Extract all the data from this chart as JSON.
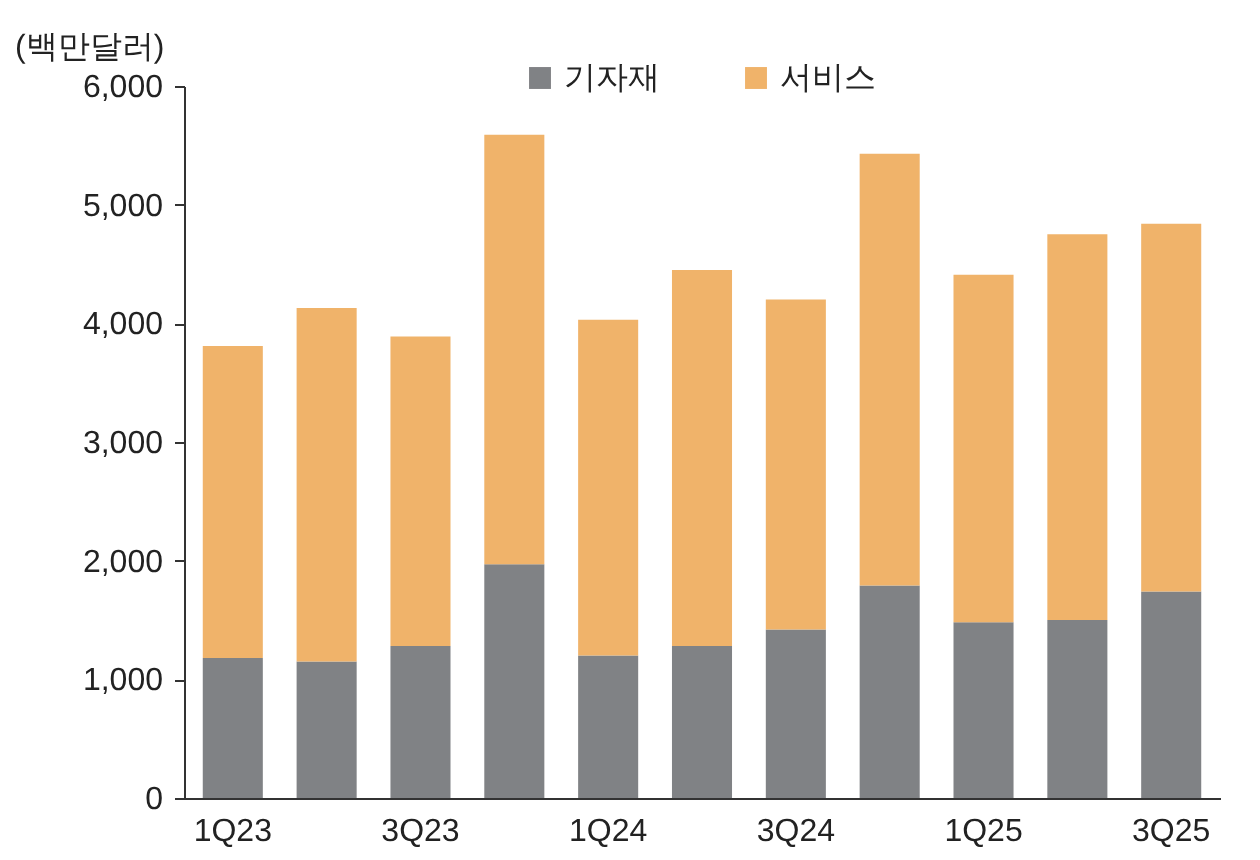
{
  "chart_data": {
    "type": "bar",
    "stacked": true,
    "ylabel": "(백만달러)",
    "categories": [
      "1Q23",
      null,
      "3Q23",
      null,
      "1Q24",
      null,
      "3Q24",
      null,
      "1Q25",
      null,
      "3Q25"
    ],
    "series": [
      {
        "name": "기자재",
        "color": "#808285",
        "values": [
          1180,
          1150,
          1280,
          1970,
          1200,
          1280,
          1420,
          1790,
          1480,
          1500,
          1740
        ]
      },
      {
        "name": "서비스",
        "color": "#f0b36a",
        "values": [
          2630,
          2980,
          2610,
          3620,
          2830,
          3170,
          2780,
          3640,
          2930,
          3250,
          3100
        ]
      }
    ],
    "ylim": [
      0,
      6000
    ],
    "yticks": [
      0,
      {
        "value": 1000,
        "label": "1,000"
      },
      {
        "value": 2000,
        "label": "2,000"
      },
      {
        "value": 3000,
        "label": "3,000"
      },
      {
        "value": 4000,
        "label": "4,000"
      },
      {
        "value": 5000,
        "label": "5,000"
      },
      {
        "value": 6000,
        "label": "6,000"
      }
    ],
    "grid": false,
    "legend": "top"
  }
}
